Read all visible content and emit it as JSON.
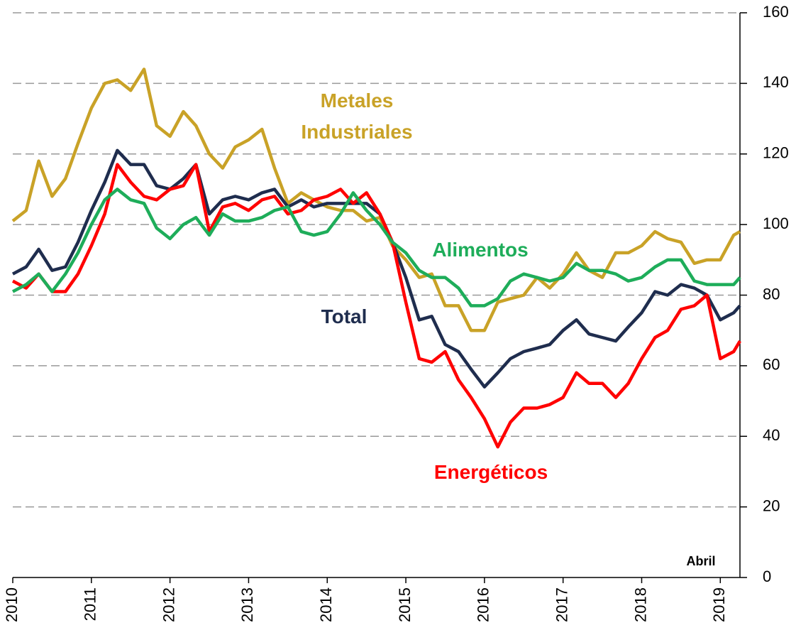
{
  "chart_data": {
    "type": "line",
    "x": [
      2010,
      2010.17,
      2010.33,
      2010.5,
      2010.67,
      2010.83,
      2011,
      2011.17,
      2011.33,
      2011.5,
      2011.67,
      2011.83,
      2012,
      2012.17,
      2012.33,
      2012.5,
      2012.67,
      2012.83,
      2013,
      2013.17,
      2013.33,
      2013.5,
      2013.67,
      2013.83,
      2014,
      2014.17,
      2014.33,
      2014.5,
      2014.67,
      2014.83,
      2015,
      2015.17,
      2015.33,
      2015.5,
      2015.67,
      2015.83,
      2016,
      2016.17,
      2016.33,
      2016.5,
      2016.67,
      2016.83,
      2017,
      2017.17,
      2017.33,
      2017.5,
      2017.67,
      2017.83,
      2018,
      2018.17,
      2018.33,
      2018.5,
      2018.67,
      2018.83,
      2019,
      2019.17,
      2019.25
    ],
    "series": [
      {
        "name": "Metales Industriales",
        "color": "#c9a227",
        "values": [
          101,
          104,
          118,
          108,
          113,
          123,
          133,
          140,
          141,
          138,
          144,
          128,
          125,
          132,
          128,
          120,
          116,
          122,
          124,
          127,
          116,
          106,
          109,
          107,
          105,
          104,
          104,
          101,
          102,
          94,
          90,
          85,
          86,
          77,
          77,
          70,
          70,
          78,
          79,
          80,
          85,
          82,
          86,
          92,
          87,
          85,
          92,
          92,
          94,
          98,
          96,
          95,
          89,
          90,
          90,
          97,
          98
        ]
      },
      {
        "name": "Total",
        "color": "#1f2d4e",
        "values": [
          86,
          88,
          93,
          87,
          88,
          95,
          104,
          112,
          121,
          117,
          117,
          111,
          110,
          113,
          117,
          103,
          107,
          108,
          107,
          109,
          110,
          105,
          107,
          105,
          106,
          106,
          106,
          106,
          103,
          95,
          85,
          73,
          74,
          66,
          64,
          59,
          54,
          58,
          62,
          64,
          65,
          66,
          70,
          73,
          69,
          68,
          67,
          71,
          75,
          81,
          80,
          83,
          82,
          80,
          73,
          75,
          77
        ]
      },
      {
        "name": "Energéticos",
        "color": "#ff0000",
        "values": [
          84,
          82,
          86,
          81,
          81,
          86,
          94,
          103,
          117,
          112,
          108,
          107,
          110,
          111,
          117,
          98,
          105,
          106,
          104,
          107,
          108,
          103,
          104,
          107,
          108,
          110,
          106,
          109,
          103,
          95,
          78,
          62,
          61,
          64,
          56,
          51,
          45,
          37,
          44,
          48,
          48,
          49,
          51,
          58,
          55,
          55,
          51,
          55,
          62,
          68,
          70,
          76,
          77,
          80,
          62,
          64,
          67
        ]
      },
      {
        "name": "Alimentos",
        "color": "#1ead5a",
        "values": [
          81,
          83,
          86,
          81,
          86,
          92,
          100,
          107,
          110,
          107,
          106,
          99,
          96,
          100,
          102,
          97,
          103,
          101,
          101,
          102,
          104,
          105,
          98,
          97,
          98,
          103,
          109,
          104,
          100,
          95,
          92,
          87,
          85,
          85,
          82,
          77,
          77,
          79,
          84,
          86,
          85,
          84,
          85,
          89,
          87,
          87,
          86,
          84,
          85,
          88,
          90,
          90,
          84,
          83,
          83,
          83,
          85
        ]
      }
    ],
    "xlim": [
      2010,
      2019.25
    ],
    "xticks": [
      2010,
      2011,
      2012,
      2013,
      2014,
      2015,
      2016,
      2017,
      2018,
      2019
    ],
    "ylim": [
      0,
      160
    ],
    "yticks": [
      0,
      20,
      40,
      60,
      80,
      100,
      120,
      140,
      160
    ],
    "grid": true,
    "annotations": [
      "Abril"
    ]
  }
}
